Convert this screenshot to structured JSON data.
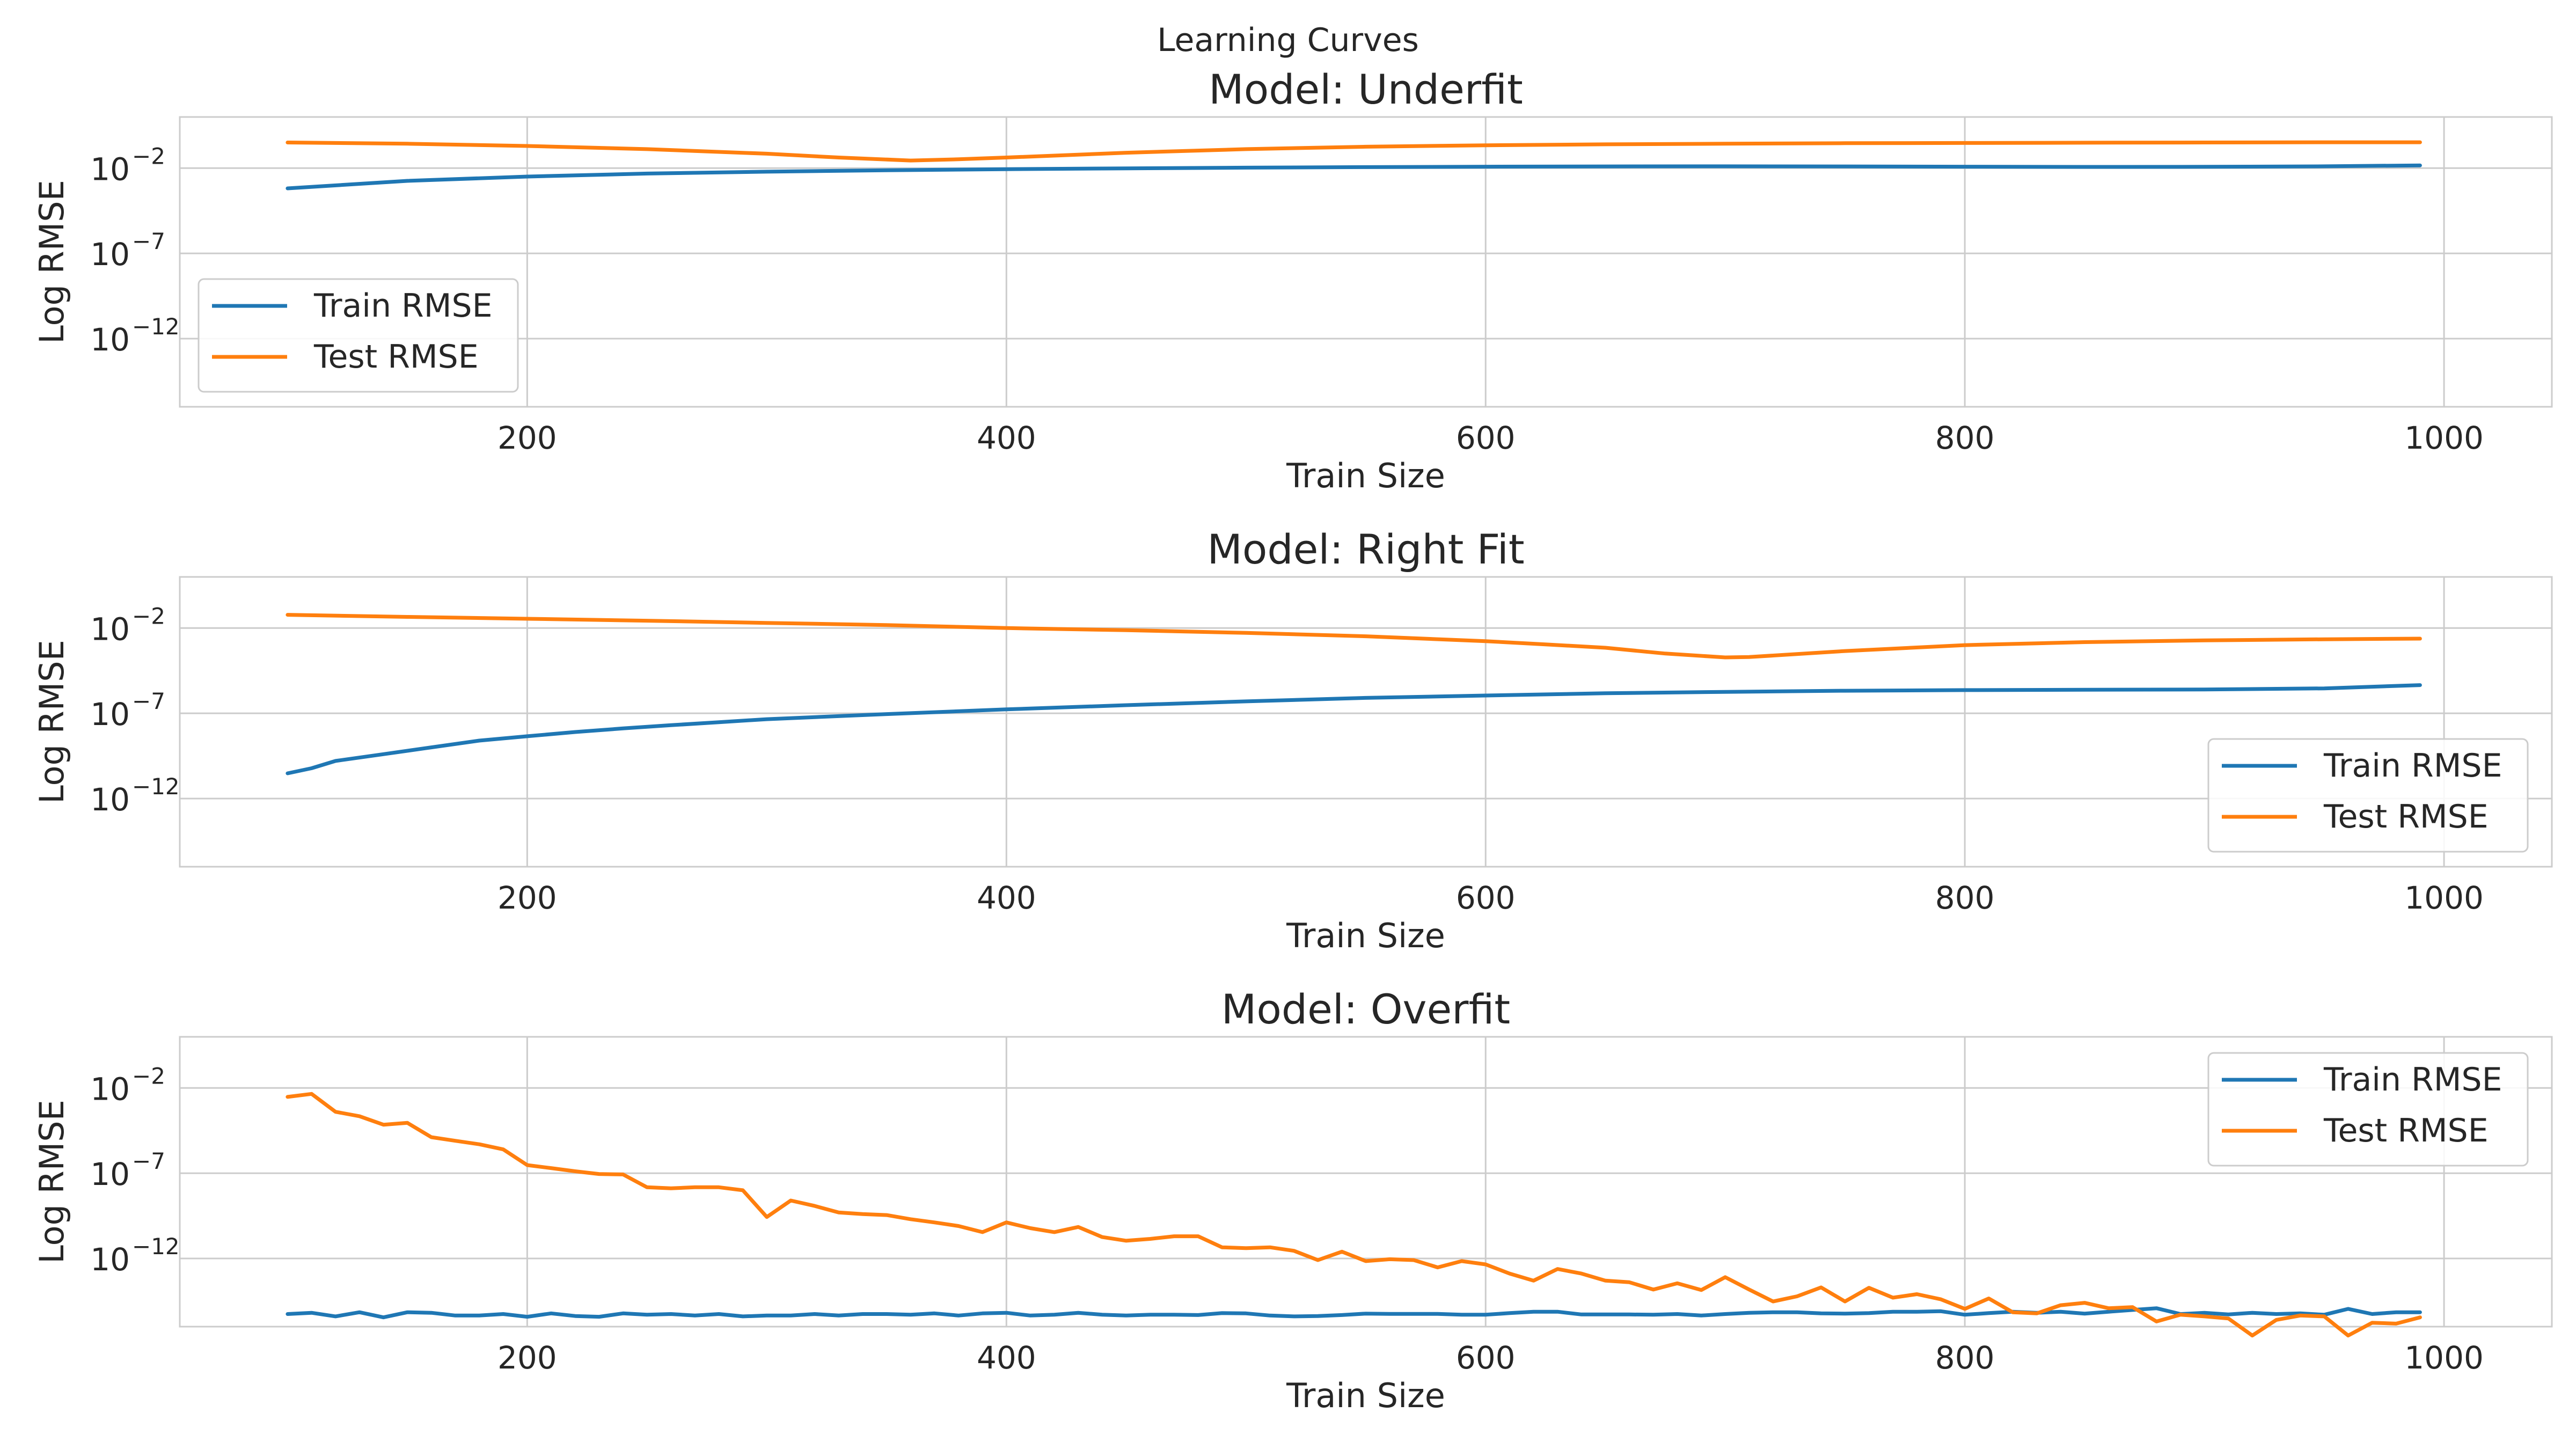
{
  "figure_title": "Learning Curves",
  "colors": {
    "train": "#1f77b4",
    "test": "#ff7f0e",
    "grid": "#cccccc",
    "text": "#262626"
  },
  "chart_data": [
    {
      "type": "line",
      "title": "Model: Underfit",
      "xlabel": "Train Size",
      "ylabel": "Log RMSE",
      "yscale": "log",
      "xlim": [
        55,
        1045
      ],
      "ylim_exp": [
        -16,
        1
      ],
      "xticks": [
        200,
        400,
        600,
        800,
        1000
      ],
      "yticks": [
        {
          "base": "10",
          "exp": "−2",
          "value_exp": -2
        },
        {
          "base": "10",
          "exp": "−7",
          "value_exp": -7
        },
        {
          "base": "10",
          "exp": "−12",
          "value_exp": -12
        }
      ],
      "grid": true,
      "legend_position": "center-left",
      "series": [
        {
          "name": "Train RMSE",
          "color": "#1f77b4",
          "x": [
            100,
            150,
            200,
            250,
            300,
            350,
            400,
            450,
            500,
            550,
            600,
            650,
            700,
            750,
            800,
            850,
            900,
            950,
            990
          ],
          "y": [
            0.00065,
            0.0018,
            0.0032,
            0.0048,
            0.0062,
            0.0075,
            0.0087,
            0.0097,
            0.0107,
            0.0115,
            0.0122,
            0.0126,
            0.0128,
            0.0126,
            0.0122,
            0.0118,
            0.012,
            0.0128,
            0.0145
          ]
        },
        {
          "name": "Test RMSE",
          "color": "#ff7f0e",
          "x": [
            100,
            150,
            200,
            250,
            300,
            330,
            360,
            380,
            400,
            450,
            500,
            550,
            600,
            650,
            700,
            750,
            800,
            850,
            900,
            950,
            990
          ],
          "y": [
            0.32,
            0.27,
            0.2,
            0.13,
            0.07,
            0.042,
            0.028,
            0.033,
            0.042,
            0.08,
            0.13,
            0.18,
            0.22,
            0.25,
            0.27,
            0.29,
            0.3,
            0.31,
            0.32,
            0.33,
            0.33
          ]
        }
      ]
    },
    {
      "type": "line",
      "title": "Model: Right Fit",
      "xlabel": "Train Size",
      "ylabel": "Log RMSE",
      "yscale": "log",
      "xlim": [
        55,
        1045
      ],
      "ylim_exp": [
        -16,
        1
      ],
      "xticks": [
        200,
        400,
        600,
        800,
        1000
      ],
      "yticks": [
        {
          "base": "10",
          "exp": "−2",
          "value_exp": -2
        },
        {
          "base": "10",
          "exp": "−7",
          "value_exp": -7
        },
        {
          "base": "10",
          "exp": "−12",
          "value_exp": -12
        }
      ],
      "grid": true,
      "legend_position": "lower-right",
      "series": [
        {
          "name": "Train RMSE",
          "color": "#1f77b4",
          "x": [
            100,
            110,
            120,
            140,
            160,
            180,
            200,
            220,
            240,
            260,
            280,
            300,
            350,
            400,
            450,
            500,
            550,
            600,
            650,
            700,
            750,
            800,
            850,
            900,
            950,
            990
          ],
          "y": [
            3e-11,
            6e-11,
            1.6e-10,
            4e-10,
            1e-09,
            2.5e-09,
            4.5e-09,
            8e-09,
            1.3e-08,
            2e-08,
            3e-08,
            4.5e-08,
            9e-08,
            1.7e-07,
            3e-07,
            5e-07,
            8e-07,
            1.1e-06,
            1.5e-06,
            1.8e-06,
            2.1e-06,
            2.3e-06,
            2.4e-06,
            2.5e-06,
            2.9e-06,
            4.5e-06
          ]
        },
        {
          "name": "Test RMSE",
          "color": "#ff7f0e",
          "x": [
            100,
            150,
            200,
            250,
            300,
            350,
            400,
            450,
            500,
            550,
            600,
            625,
            650,
            675,
            700,
            710,
            750,
            800,
            850,
            900,
            950,
            990
          ],
          "y": [
            0.06,
            0.045,
            0.035,
            0.027,
            0.02,
            0.015,
            0.01,
            0.0075,
            0.0052,
            0.0033,
            0.0017,
            0.0011,
            0.0007,
            0.00032,
            0.00019,
            0.0002,
            0.00045,
            0.001,
            0.0015,
            0.0019,
            0.0022,
            0.0024
          ]
        }
      ]
    },
    {
      "type": "line",
      "title": "Model: Overfit",
      "xlabel": "Train Size",
      "ylabel": "Log RMSE",
      "yscale": "log",
      "xlim": [
        55,
        1045
      ],
      "ylim_exp": [
        -16,
        1
      ],
      "xticks": [
        200,
        400,
        600,
        800,
        1000
      ],
      "yticks": [
        {
          "base": "10",
          "exp": "−2",
          "value_exp": -2
        },
        {
          "base": "10",
          "exp": "−7",
          "value_exp": -7
        },
        {
          "base": "10",
          "exp": "−12",
          "value_exp": -12
        }
      ],
      "grid": true,
      "legend_position": "upper-right",
      "series": [
        {
          "name": "Train RMSE",
          "color": "#1f77b4",
          "x": [
            100,
            110,
            120,
            130,
            140,
            150,
            160,
            170,
            180,
            190,
            200,
            210,
            220,
            230,
            240,
            250,
            260,
            270,
            280,
            290,
            300,
            310,
            320,
            330,
            340,
            350,
            360,
            370,
            380,
            390,
            400,
            410,
            420,
            430,
            440,
            450,
            460,
            470,
            480,
            490,
            500,
            510,
            520,
            530,
            540,
            550,
            560,
            570,
            580,
            590,
            600,
            610,
            620,
            630,
            640,
            650,
            660,
            670,
            680,
            690,
            700,
            710,
            720,
            730,
            740,
            750,
            760,
            770,
            780,
            790,
            800,
            810,
            820,
            830,
            840,
            850,
            860,
            870,
            880,
            890,
            900,
            910,
            920,
            930,
            940,
            950,
            960,
            970,
            980,
            990
          ],
          "y": [
            5.5e-16,
            6.5e-16,
            4e-16,
            7e-16,
            3.5e-16,
            7e-16,
            6.5e-16,
            4.5e-16,
            4.5e-16,
            5.5e-16,
            3.8e-16,
            6e-16,
            4.2e-16,
            3.8e-16,
            6e-16,
            5e-16,
            5.5e-16,
            4.5e-16,
            5.5e-16,
            4e-16,
            4.5e-16,
            4.5e-16,
            5.5e-16,
            4.5e-16,
            5.5e-16,
            5.5e-16,
            5e-16,
            6e-16,
            4.5e-16,
            6e-16,
            6.5e-16,
            4.5e-16,
            5e-16,
            6.5e-16,
            5e-16,
            4.5e-16,
            5e-16,
            5e-16,
            4.8e-16,
            6.2e-16,
            6e-16,
            4.5e-16,
            4e-16,
            4.2e-16,
            4.8e-16,
            5.8e-16,
            5.6e-16,
            5.6e-16,
            5.6e-16,
            5e-16,
            5e-16,
            6.2e-16,
            7.5e-16,
            7.5e-16,
            5.2e-16,
            5.2e-16,
            5.2e-16,
            5e-16,
            5.5e-16,
            4.5e-16,
            5.5e-16,
            6.5e-16,
            7e-16,
            7e-16,
            6e-16,
            5.8e-16,
            6.2e-16,
            7.5e-16,
            7.5e-16,
            8e-16,
            5e-16,
            6.2e-16,
            7.5e-16,
            6.5e-16,
            7.5e-16,
            5.8e-16,
            7.5e-16,
            9.5e-16,
            1.2e-15,
            5.5e-16,
            6.5e-16,
            5.2e-16,
            6.5e-16,
            5.5e-16,
            6e-16,
            5e-16,
            1.1e-15,
            5.5e-16,
            7e-16,
            7e-16
          ]
        },
        {
          "name": "Test RMSE",
          "color": "#ff7f0e",
          "x": [
            100,
            110,
            120,
            130,
            140,
            150,
            160,
            170,
            180,
            190,
            200,
            210,
            220,
            230,
            240,
            250,
            260,
            270,
            280,
            290,
            300,
            310,
            320,
            330,
            340,
            350,
            360,
            370,
            380,
            390,
            400,
            410,
            420,
            430,
            440,
            450,
            460,
            470,
            480,
            490,
            500,
            510,
            520,
            530,
            540,
            550,
            560,
            570,
            580,
            590,
            600,
            610,
            620,
            630,
            640,
            650,
            660,
            670,
            680,
            690,
            700,
            710,
            720,
            730,
            740,
            750,
            760,
            770,
            780,
            790,
            800,
            810,
            820,
            830,
            840,
            850,
            860,
            870,
            880,
            890,
            900,
            910,
            920,
            930,
            940,
            950,
            960,
            970,
            980,
            990
          ],
          "y": [
            0.003,
            0.0045,
            0.0004,
            0.00022,
            7e-05,
            9e-05,
            1.3e-05,
            8e-06,
            5e-06,
            2.5e-06,
            3e-07,
            2e-07,
            1.3e-07,
            9e-08,
            8.5e-08,
            1.5e-08,
            1.3e-08,
            1.5e-08,
            1.5e-08,
            1e-08,
            2.7e-10,
            2.5e-09,
            1.2e-09,
            5e-10,
            4e-10,
            3.5e-10,
            2e-10,
            1.3e-10,
            8e-11,
            3.5e-11,
            1.3e-10,
            6e-11,
            3.5e-11,
            7e-11,
            1.8e-11,
            1.1e-11,
            1.4e-11,
            2e-11,
            2e-11,
            4.5e-12,
            4e-12,
            4.5e-12,
            2.8e-12,
            8e-13,
            2.5e-12,
            7e-13,
            9e-13,
            8e-13,
            3e-13,
            7e-13,
            4.5e-13,
            1.3e-13,
            5e-14,
            2.4e-13,
            1.3e-13,
            5e-14,
            4e-14,
            1.5e-14,
            3.5e-14,
            1.4e-14,
            8e-14,
            1.5e-14,
            3e-15,
            6e-15,
            2e-14,
            3e-15,
            1.9e-14,
            5e-15,
            8e-15,
            4e-15,
            1.1e-15,
            4.5e-15,
            7e-16,
            6e-16,
            1.8e-15,
            2.5e-15,
            1.2e-15,
            1.4e-15,
            2e-16,
            5e-16,
            4e-16,
            3e-16,
            3e-17,
            2.5e-16,
            4.5e-16,
            4e-16,
            3e-17,
            1.7e-16,
            1.5e-16,
            3.5e-16
          ]
        }
      ]
    }
  ]
}
